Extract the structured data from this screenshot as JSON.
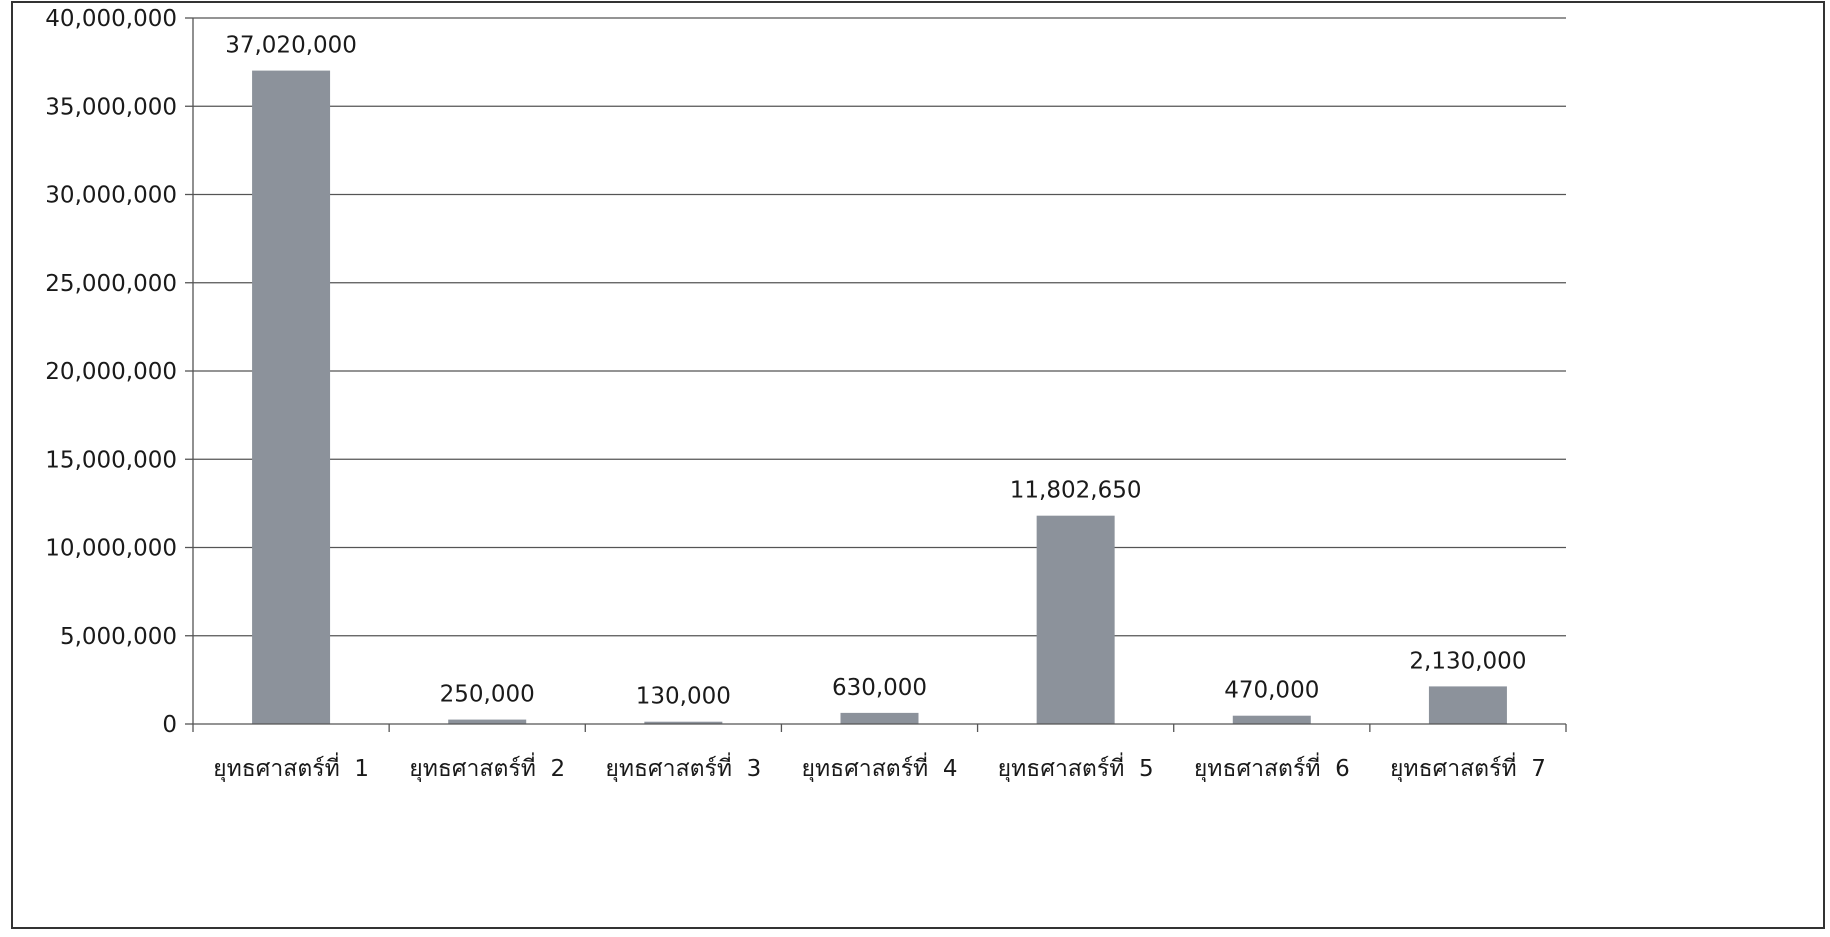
{
  "chart_data": {
    "type": "bar",
    "title": "",
    "xlabel": "",
    "ylabel": "",
    "categories": [
      "ยุทธศาสตร์ที่  1",
      "ยุทธศาสตร์ที่  2",
      "ยุทธศาสตร์ที่  3",
      "ยุทธศาสตร์ที่  4",
      "ยุทธศาสตร์ที่  5",
      "ยุทธศาสตร์ที่  6",
      "ยุทธศาสตร์ที่  7"
    ],
    "values": [
      37020000,
      250000,
      130000,
      630000,
      11802650,
      470000,
      2130000
    ],
    "data_labels": [
      "37,020,000",
      "250,000",
      "130,000",
      "630,000",
      "11,802,650",
      "470,000",
      "2,130,000"
    ],
    "ylim": [
      0,
      40000000
    ],
    "yticks": [
      0,
      5000000,
      10000000,
      15000000,
      20000000,
      25000000,
      30000000,
      35000000,
      40000000
    ],
    "ytick_labels": [
      "0",
      "5,000,000",
      "10,000,000",
      "15,000,000",
      "20,000,000",
      "25,000,000",
      "30,000,000",
      "35,000,000",
      "40,000,000"
    ],
    "grid": true,
    "legend": "none",
    "colors": {
      "bar": "#8c929b",
      "grid": "#555555",
      "border": "#333333",
      "text": "#1a1a1a"
    }
  }
}
